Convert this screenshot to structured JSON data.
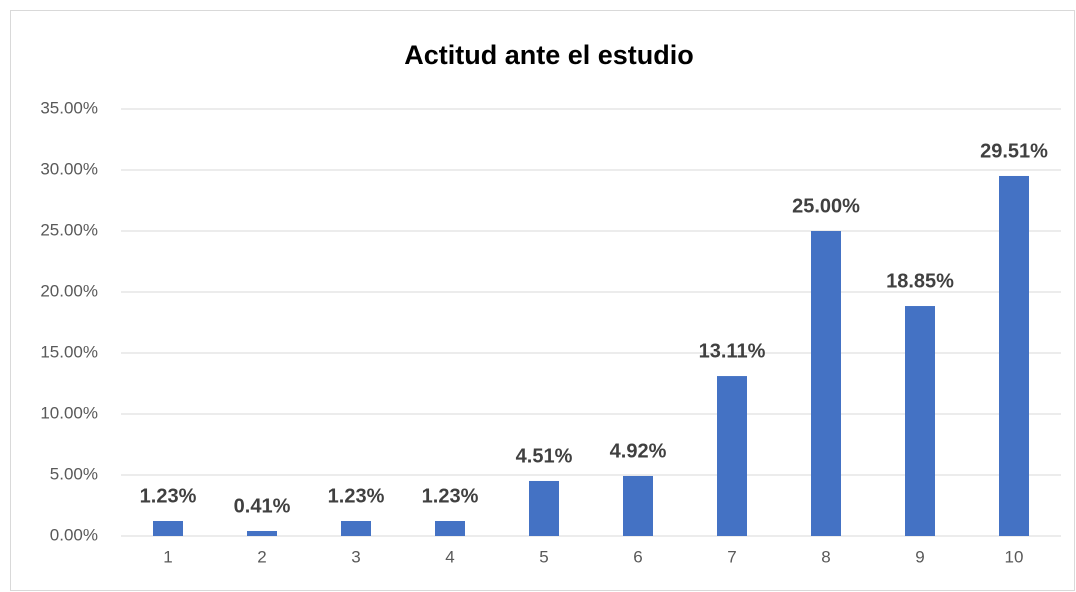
{
  "chart_data": {
    "type": "bar",
    "title": "Actitud ante el estudio",
    "categories": [
      "1",
      "2",
      "3",
      "4",
      "5",
      "6",
      "7",
      "8",
      "9",
      "10"
    ],
    "values": [
      1.23,
      0.41,
      1.23,
      1.23,
      4.51,
      4.92,
      13.11,
      25.0,
      18.85,
      29.51
    ],
    "value_labels": [
      "1.23%",
      "0.41%",
      "1.23%",
      "1.23%",
      "4.51%",
      "4.92%",
      "13.11%",
      "25.00%",
      "18.85%",
      "29.51%"
    ],
    "color": "#4472c4",
    "ylim": [
      0,
      35
    ],
    "yticks": [
      {
        "value": 0,
        "label": "0.00%"
      },
      {
        "value": 5,
        "label": "5.00%"
      },
      {
        "value": 10,
        "label": "10.00%"
      },
      {
        "value": 15,
        "label": "15.00%"
      },
      {
        "value": 20,
        "label": "20.00%"
      },
      {
        "value": 25,
        "label": "25.00%"
      },
      {
        "value": 30,
        "label": "30.00%"
      },
      {
        "value": 35,
        "label": "35.00%"
      }
    ],
    "grid": true
  }
}
